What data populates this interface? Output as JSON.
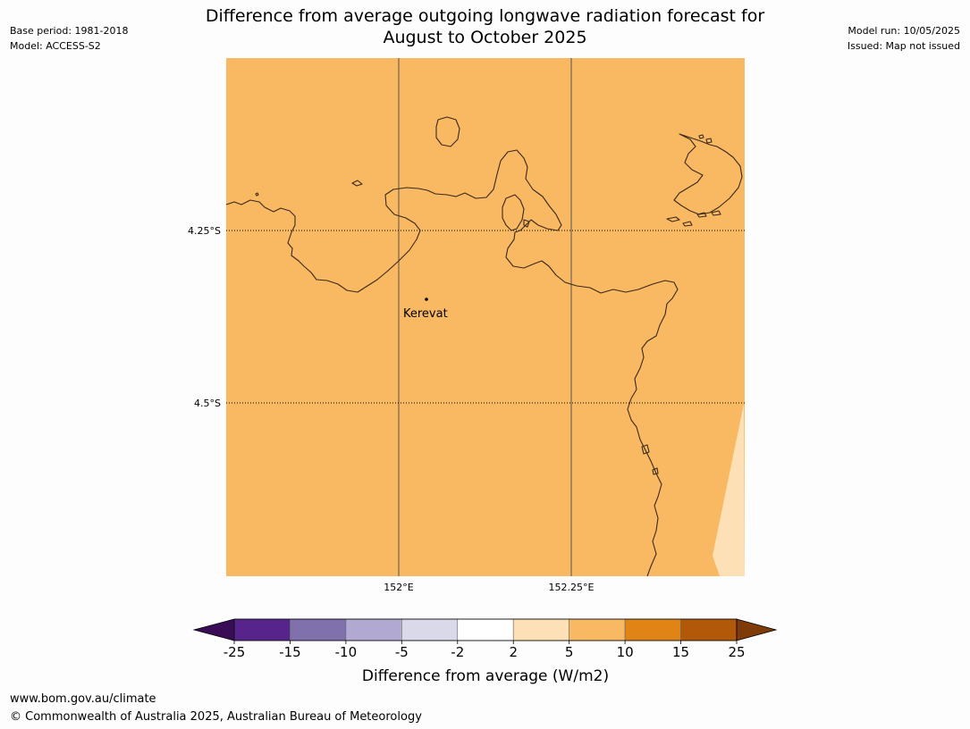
{
  "title": {
    "line1": "Difference from average outgoing longwave radiation forecast for",
    "line2": "August to October 2025"
  },
  "meta_left": {
    "base_period": "Base period: 1981-2018",
    "model": "Model: ACCESS-S2"
  },
  "meta_right": {
    "model_run": "Model run: 10/05/2025",
    "issued": "Issued: Map not issued"
  },
  "map": {
    "lat_labels": [
      "4.25°S",
      "4.5°S"
    ],
    "lon_labels": [
      "152°E",
      "152.25°E"
    ],
    "place": "Kerevat",
    "fill_colors": {
      "main": "#f9b862",
      "lighter": "#fde0b5"
    },
    "coast_color": "#3a2a1a"
  },
  "legend": {
    "ticks": [
      "-25",
      "-15",
      "-10",
      "-5",
      "-2",
      "2",
      "5",
      "10",
      "15",
      "25"
    ],
    "label": "Difference from average (W/m2)",
    "colors": [
      "#3a0c56",
      "#56248a",
      "#8071ad",
      "#b1a9d2",
      "#d9d9ea",
      "#ffffff",
      "#fde0b5",
      "#f9b862",
      "#e08416",
      "#b15809",
      "#7f3b08"
    ]
  },
  "footer": {
    "url": "www.bom.gov.au/climate",
    "copyright": "© Commonwealth of Australia 2025, Australian Bureau of Meteorology"
  }
}
